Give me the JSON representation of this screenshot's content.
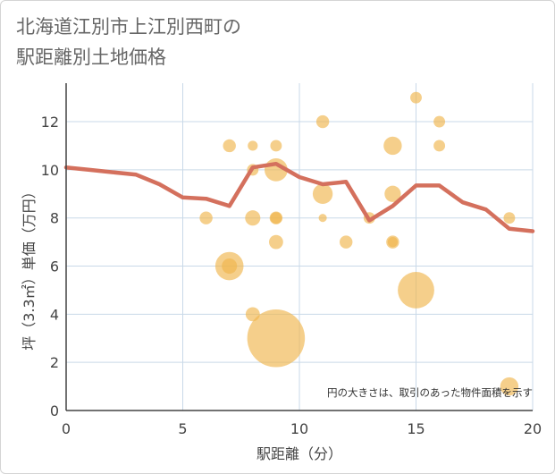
{
  "title_lines": [
    "北海道江別市上江別西町の",
    "駅距離別土地価格"
  ],
  "note": "円の大きさは、取引のあった物件面積を示す",
  "colors": {
    "bubble": "#f0b54d",
    "line": "#d4705d",
    "grid": "#c9d9e8",
    "axis": "#444444",
    "text": "#666666"
  },
  "chart_data": {
    "type": "scatter",
    "xlabel": "駅距離（分）",
    "ylabel": "坪（3.3㎡）単価（万円）",
    "xlim": [
      0,
      20
    ],
    "ylim": [
      0,
      13.6
    ],
    "x_ticks": [
      0,
      5,
      10,
      15,
      20
    ],
    "y_ticks": [
      0,
      2,
      4,
      6,
      8,
      10,
      12
    ],
    "grid": true,
    "bubbles": [
      {
        "x": 6,
        "y": 8,
        "size": 0.5
      },
      {
        "x": 7,
        "y": 11,
        "size": 0.5
      },
      {
        "x": 7,
        "y": 6,
        "size": 2.4
      },
      {
        "x": 7,
        "y": 6,
        "size": 0.7
      },
      {
        "x": 8,
        "y": 11,
        "size": 0.3
      },
      {
        "x": 8,
        "y": 10,
        "size": 0.4
      },
      {
        "x": 8,
        "y": 8,
        "size": 0.7
      },
      {
        "x": 8,
        "y": 4,
        "size": 0.6
      },
      {
        "x": 9,
        "y": 11,
        "size": 0.4
      },
      {
        "x": 9,
        "y": 10,
        "size": 1.6
      },
      {
        "x": 9,
        "y": 8,
        "size": 0.5
      },
      {
        "x": 9,
        "y": 8,
        "size": 0.4
      },
      {
        "x": 9,
        "y": 7,
        "size": 0.6
      },
      {
        "x": 9,
        "y": 3,
        "size": 10
      },
      {
        "x": 11,
        "y": 12,
        "size": 0.5
      },
      {
        "x": 11,
        "y": 9,
        "size": 1.2
      },
      {
        "x": 11,
        "y": 8,
        "size": 0.2
      },
      {
        "x": 12,
        "y": 7,
        "size": 0.5
      },
      {
        "x": 13,
        "y": 8,
        "size": 0.4
      },
      {
        "x": 14,
        "y": 11,
        "size": 1.0
      },
      {
        "x": 14,
        "y": 9,
        "size": 0.8
      },
      {
        "x": 14,
        "y": 7,
        "size": 0.5
      },
      {
        "x": 14,
        "y": 7,
        "size": 0.3
      },
      {
        "x": 15,
        "y": 13,
        "size": 0.4
      },
      {
        "x": 15,
        "y": 5,
        "size": 4.0
      },
      {
        "x": 16,
        "y": 12,
        "size": 0.4
      },
      {
        "x": 16,
        "y": 11,
        "size": 0.4
      },
      {
        "x": 19,
        "y": 8,
        "size": 0.4
      },
      {
        "x": 19,
        "y": 1,
        "size": 1.0
      }
    ],
    "series": [
      {
        "type": "line",
        "x": [
          0,
          1,
          2,
          3,
          4,
          5,
          6,
          7,
          7.5,
          8,
          9,
          10,
          11,
          12,
          13,
          14,
          15,
          16,
          17,
          18,
          19,
          20
        ],
        "values": [
          10.1,
          10.0,
          9.9,
          9.8,
          9.4,
          8.85,
          8.8,
          8.5,
          9.3,
          10.1,
          10.25,
          9.7,
          9.4,
          9.5,
          7.9,
          8.5,
          9.35,
          9.35,
          8.65,
          8.35,
          7.55,
          7.45
        ]
      }
    ]
  }
}
